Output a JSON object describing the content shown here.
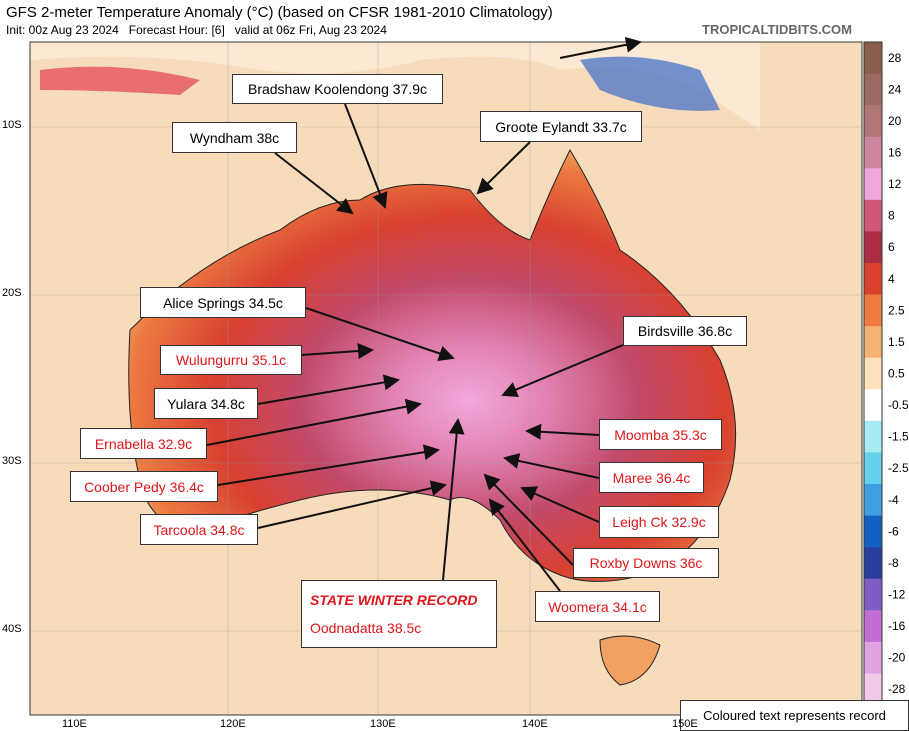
{
  "header": {
    "title": "GFS 2-meter Temperature Anomaly (°C) (based on CFSR 1981-2010 Climatology)",
    "subtitle": "Init: 00z Aug 23 2024   Forecast Hour: [6]   valid at 06z Fri, Aug 23 2024",
    "brand": "TROPICALTIDBITS.COM"
  },
  "latitude_labels": [
    "10S",
    "20S",
    "30S",
    "40S"
  ],
  "longitude_labels": [
    "110E",
    "120E",
    "130E",
    "140E",
    "150E"
  ],
  "colorbar": [
    {
      "label": "28",
      "color": "#8a5e4e"
    },
    {
      "label": "24",
      "color": "#9c6a62"
    },
    {
      "label": "20",
      "color": "#b07676"
    },
    {
      "label": "16",
      "color": "#cc86a0"
    },
    {
      "label": "12",
      "color": "#f0a8da"
    },
    {
      "label": "8",
      "color": "#cf5878"
    },
    {
      "label": "6",
      "color": "#ab2e44"
    },
    {
      "label": "4",
      "color": "#d9402e"
    },
    {
      "label": "2.5",
      "color": "#ee7c42"
    },
    {
      "label": "1.5",
      "color": "#f6b274"
    },
    {
      "label": "0.5",
      "color": "#fbe2bc"
    },
    {
      "label": "-0.5",
      "color": "#ffffff"
    },
    {
      "label": "-1.5",
      "color": "#a6ecf2"
    },
    {
      "label": "-2.5",
      "color": "#64d2ea"
    },
    {
      "label": "-4",
      "color": "#3e9fe0"
    },
    {
      "label": "-6",
      "color": "#1460c0"
    },
    {
      "label": "-8",
      "color": "#2a3e9e"
    },
    {
      "label": "-12",
      "color": "#7e5ec2"
    },
    {
      "label": "-16",
      "color": "#c06ed2"
    },
    {
      "label": "-20",
      "color": "#e0a2e2"
    },
    {
      "label": "-28",
      "color": "#f2cae8"
    }
  ],
  "annotations": [
    {
      "label": "Bradshaw Koolendong 37.9c",
      "record": false
    },
    {
      "label": "Wyndham 38c",
      "record": false
    },
    {
      "label": "Groote Eylandt 33.7c",
      "record": false
    },
    {
      "label": "Alice Springs 34.5c",
      "record": false
    },
    {
      "label": "Wulungurru 35.1c",
      "record": true
    },
    {
      "label": "Birdsville 36.8c",
      "record": false
    },
    {
      "label": "Yulara 34.8c",
      "record": false
    },
    {
      "label": "Ernabella 32.9c",
      "record": true
    },
    {
      "label": "Coober Pedy 36.4c",
      "record": true
    },
    {
      "label": "Tarcoola 34.8c",
      "record": true
    },
    {
      "label": "Moomba 35.3c",
      "record": true
    },
    {
      "label": "Maree 36.4c",
      "record": true
    },
    {
      "label": "Leigh Ck 32.9c",
      "record": true
    },
    {
      "label": "Roxby Downs 36c",
      "record": true
    },
    {
      "label": "Woomera 34.1c",
      "record": true
    }
  ],
  "record_callout": {
    "heading": "STATE WINTER RECORD",
    "label": "Oodnadatta 38.5c"
  },
  "note": "Coloured text represents record"
}
